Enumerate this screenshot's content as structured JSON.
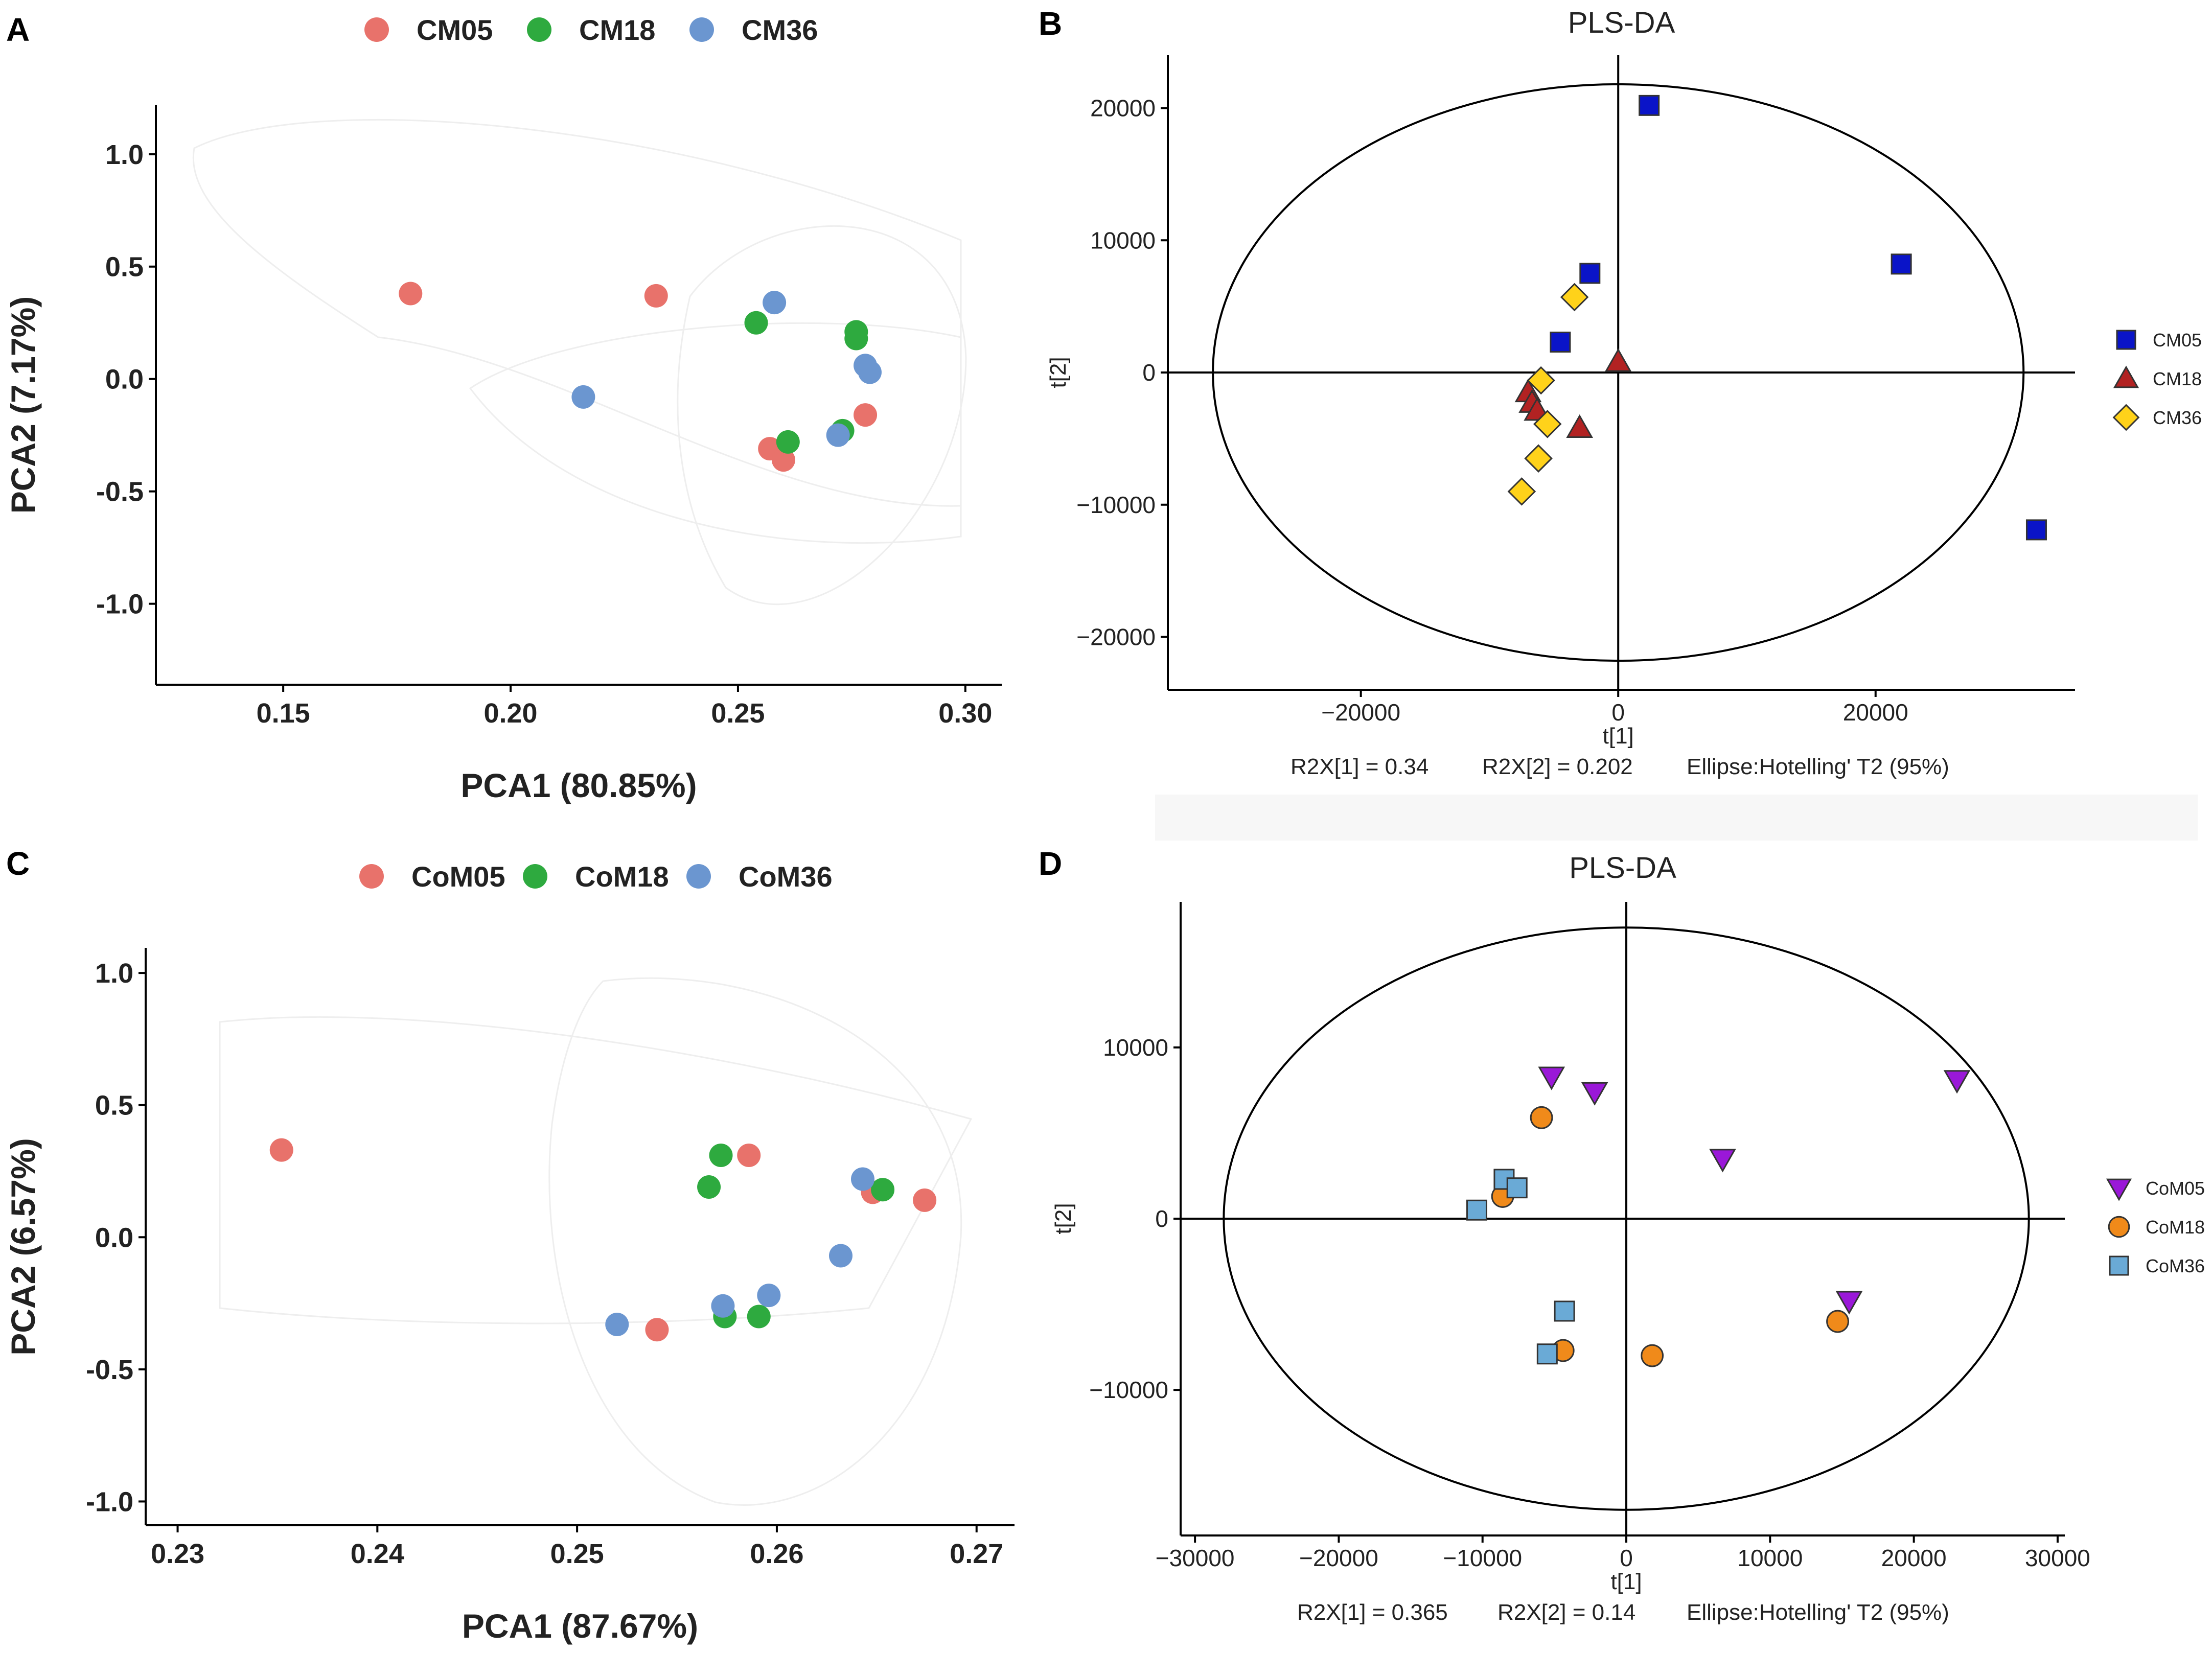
{
  "colors": {
    "CM05": "#e8726b",
    "CM18": "#2eaa3f",
    "CM36": "#6b96d0",
    "sq_blue": "#0a14c8",
    "tri_red": "#b22222",
    "dia_yellow": "#ffd21a",
    "tri_purple": "#9a18d8",
    "circ_orange": "#f08a1a",
    "sq_lightblue": "#6aaad6"
  },
  "chart_data": [
    {
      "panel": "A",
      "type": "scatter",
      "xlabel": "PCA1 (80.85%)",
      "ylabel": "PCA2 (7.17%)",
      "xlim": [
        0.122,
        0.308
      ],
      "ylim": [
        -1.36,
        1.22
      ],
      "xticks": [
        0.15,
        0.2,
        0.25,
        0.3
      ],
      "xtick_labels": [
        "0.15",
        "0.20",
        "0.25",
        "0.30"
      ],
      "yticks": [
        1.0,
        0.5,
        0.0,
        -0.5,
        -1.0
      ],
      "ytick_labels": [
        "1.0",
        "0.5",
        "0.0",
        "-0.5",
        "-1.0"
      ],
      "legend": [
        {
          "name": "CM05",
          "color": "#e8726b"
        },
        {
          "name": "CM18",
          "color": "#2eaa3f"
        },
        {
          "name": "CM36",
          "color": "#6b96d0"
        }
      ],
      "series": [
        {
          "name": "CM05",
          "color": "#e8726b",
          "points": [
            [
              0.178,
              0.38
            ],
            [
              0.232,
              0.37
            ],
            [
              0.257,
              -0.31
            ],
            [
              0.26,
              -0.36
            ],
            [
              0.278,
              -0.16
            ]
          ]
        },
        {
          "name": "CM18",
          "color": "#2eaa3f",
          "points": [
            [
              0.254,
              0.25
            ],
            [
              0.276,
              0.21
            ],
            [
              0.276,
              0.18
            ],
            [
              0.261,
              -0.28
            ],
            [
              0.273,
              -0.23
            ]
          ]
        },
        {
          "name": "CM36",
          "color": "#6b96d0",
          "points": [
            [
              0.216,
              -0.08
            ],
            [
              0.258,
              0.34
            ],
            [
              0.278,
              0.06
            ],
            [
              0.279,
              0.03
            ],
            [
              0.272,
              -0.25
            ]
          ]
        }
      ]
    },
    {
      "panel": "B",
      "type": "scatter",
      "title": "PLS-DA",
      "xlabel": "t[1]",
      "ylabel": "t[2]",
      "xlim": [
        -35000,
        35500
      ],
      "ylim": [
        -24000,
        24000
      ],
      "xticks": [
        -20000,
        0,
        20000
      ],
      "xtick_labels": [
        "−20000",
        "0",
        "20000"
      ],
      "yticks": [
        20000,
        10000,
        0,
        -10000,
        -20000
      ],
      "ytick_labels": [
        "20000",
        "10000",
        "0",
        "−10000",
        "−20000"
      ],
      "ellipse": {
        "a": 31500,
        "b": 21800
      },
      "stats": [
        "R2X[1]  =  0.34",
        "R2X[2]  =  0.202",
        "Ellipse:Hotelling' T2 (95%)"
      ],
      "legend": [
        {
          "name": "CM05",
          "shape": "square",
          "color": "#0a14c8"
        },
        {
          "name": "CM18",
          "shape": "triangle",
          "color": "#b22222"
        },
        {
          "name": "CM36",
          "shape": "diamond",
          "color": "#ffd21a"
        }
      ],
      "series": [
        {
          "name": "CM05",
          "shape": "square",
          "color": "#0a14c8",
          "points": [
            [
              2400,
              20200
            ],
            [
              -2200,
              7500
            ],
            [
              -4500,
              2300
            ],
            [
              22000,
              8200
            ],
            [
              32500,
              -11900
            ]
          ]
        },
        {
          "name": "CM18",
          "shape": "triangle",
          "color": "#b22222",
          "points": [
            [
              0,
              800
            ],
            [
              -7000,
              -1500
            ],
            [
              -6700,
              -2300
            ],
            [
              -6300,
              -2900
            ],
            [
              -3000,
              -4200
            ]
          ]
        },
        {
          "name": "CM36",
          "shape": "diamond",
          "color": "#ffd21a",
          "points": [
            [
              -3400,
              5700
            ],
            [
              -6000,
              -600
            ],
            [
              -5500,
              -3900
            ],
            [
              -6200,
              -6500
            ],
            [
              -7500,
              -9000
            ]
          ]
        }
      ]
    },
    {
      "panel": "C",
      "type": "scatter",
      "xlabel": "PCA1 (87.67%)",
      "ylabel": "PCA2 (6.57%)",
      "xlim": [
        0.2284,
        0.2719
      ],
      "ylim": [
        -1.09,
        1.095
      ],
      "xticks": [
        0.23,
        0.24,
        0.25,
        0.26,
        0.27
      ],
      "xtick_labels": [
        "0.23",
        "0.24",
        "0.25",
        "0.26",
        "0.27"
      ],
      "yticks": [
        1.0,
        0.5,
        0.0,
        -0.5,
        -1.0
      ],
      "ytick_labels": [
        "1.0",
        "0.5",
        "0.0",
        "-0.5",
        "-1.0"
      ],
      "legend": [
        {
          "name": "CoM05",
          "color": "#e8726b"
        },
        {
          "name": "CoM18",
          "color": "#2eaa3f"
        },
        {
          "name": "CoM36",
          "color": "#6b96d0"
        }
      ],
      "series": [
        {
          "name": "CoM05",
          "color": "#e8726b",
          "points": [
            [
              0.2352,
              0.33
            ],
            [
              0.2586,
              0.31
            ],
            [
              0.2648,
              0.17
            ],
            [
              0.2674,
              0.14
            ],
            [
              0.254,
              -0.35
            ]
          ]
        },
        {
          "name": "CoM18",
          "color": "#2eaa3f",
          "points": [
            [
              0.2572,
              0.31
            ],
            [
              0.2566,
              0.19
            ],
            [
              0.2653,
              0.18
            ],
            [
              0.2574,
              -0.3
            ],
            [
              0.2591,
              -0.3
            ]
          ]
        },
        {
          "name": "CoM36",
          "color": "#6b96d0",
          "points": [
            [
              0.2643,
              0.22
            ],
            [
              0.2632,
              -0.07
            ],
            [
              0.2596,
              -0.22
            ],
            [
              0.2573,
              -0.26
            ],
            [
              0.252,
              -0.33
            ]
          ]
        }
      ]
    },
    {
      "panel": "D",
      "type": "scatter",
      "title": "PLS-DA",
      "xlabel": "t[1]",
      "ylabel": "t[2]",
      "xlim": [
        -31000,
        30500
      ],
      "ylim": [
        -18500,
        18500
      ],
      "xticks": [
        -30000,
        -20000,
        -10000,
        0,
        10000,
        20000,
        30000
      ],
      "xtick_labels": [
        "−30000",
        "−20000",
        "−10000",
        "0",
        "10000",
        "20000",
        "30000"
      ],
      "yticks": [
        10000,
        0,
        -10000
      ],
      "ytick_labels": [
        "10000",
        "0",
        "−10000"
      ],
      "ellipse": {
        "a": 28000,
        "b": 17000
      },
      "stats": [
        "R2X[1]  =  0.365",
        "R2X[2]  =  0.14",
        "Ellipse:Hotelling' T2 (95%)"
      ],
      "legend": [
        {
          "name": "CoM05",
          "shape": "triangle-down",
          "color": "#9a18d8"
        },
        {
          "name": "CoM18",
          "shape": "circle",
          "color": "#f08a1a"
        },
        {
          "name": "CoM36",
          "shape": "square",
          "color": "#6aaad6"
        }
      ],
      "series": [
        {
          "name": "CoM05",
          "shape": "triangle-down",
          "color": "#9a18d8",
          "points": [
            [
              -5200,
              8300
            ],
            [
              -2200,
              7400
            ],
            [
              6700,
              3500
            ],
            [
              23000,
              8100
            ],
            [
              15500,
              -4800
            ]
          ]
        },
        {
          "name": "CoM18",
          "shape": "circle",
          "color": "#f08a1a",
          "points": [
            [
              -5900,
              5900
            ],
            [
              -8600,
              1300
            ],
            [
              14700,
              -6000
            ],
            [
              -4400,
              -7700
            ],
            [
              1800,
              -8000
            ]
          ]
        },
        {
          "name": "CoM36",
          "shape": "square",
          "color": "#6aaad6",
          "points": [
            [
              -10400,
              500
            ],
            [
              -8500,
              2300
            ],
            [
              -7600,
              1800
            ],
            [
              -4300,
              -5400
            ],
            [
              -5500,
              -7900
            ]
          ]
        }
      ]
    }
  ]
}
